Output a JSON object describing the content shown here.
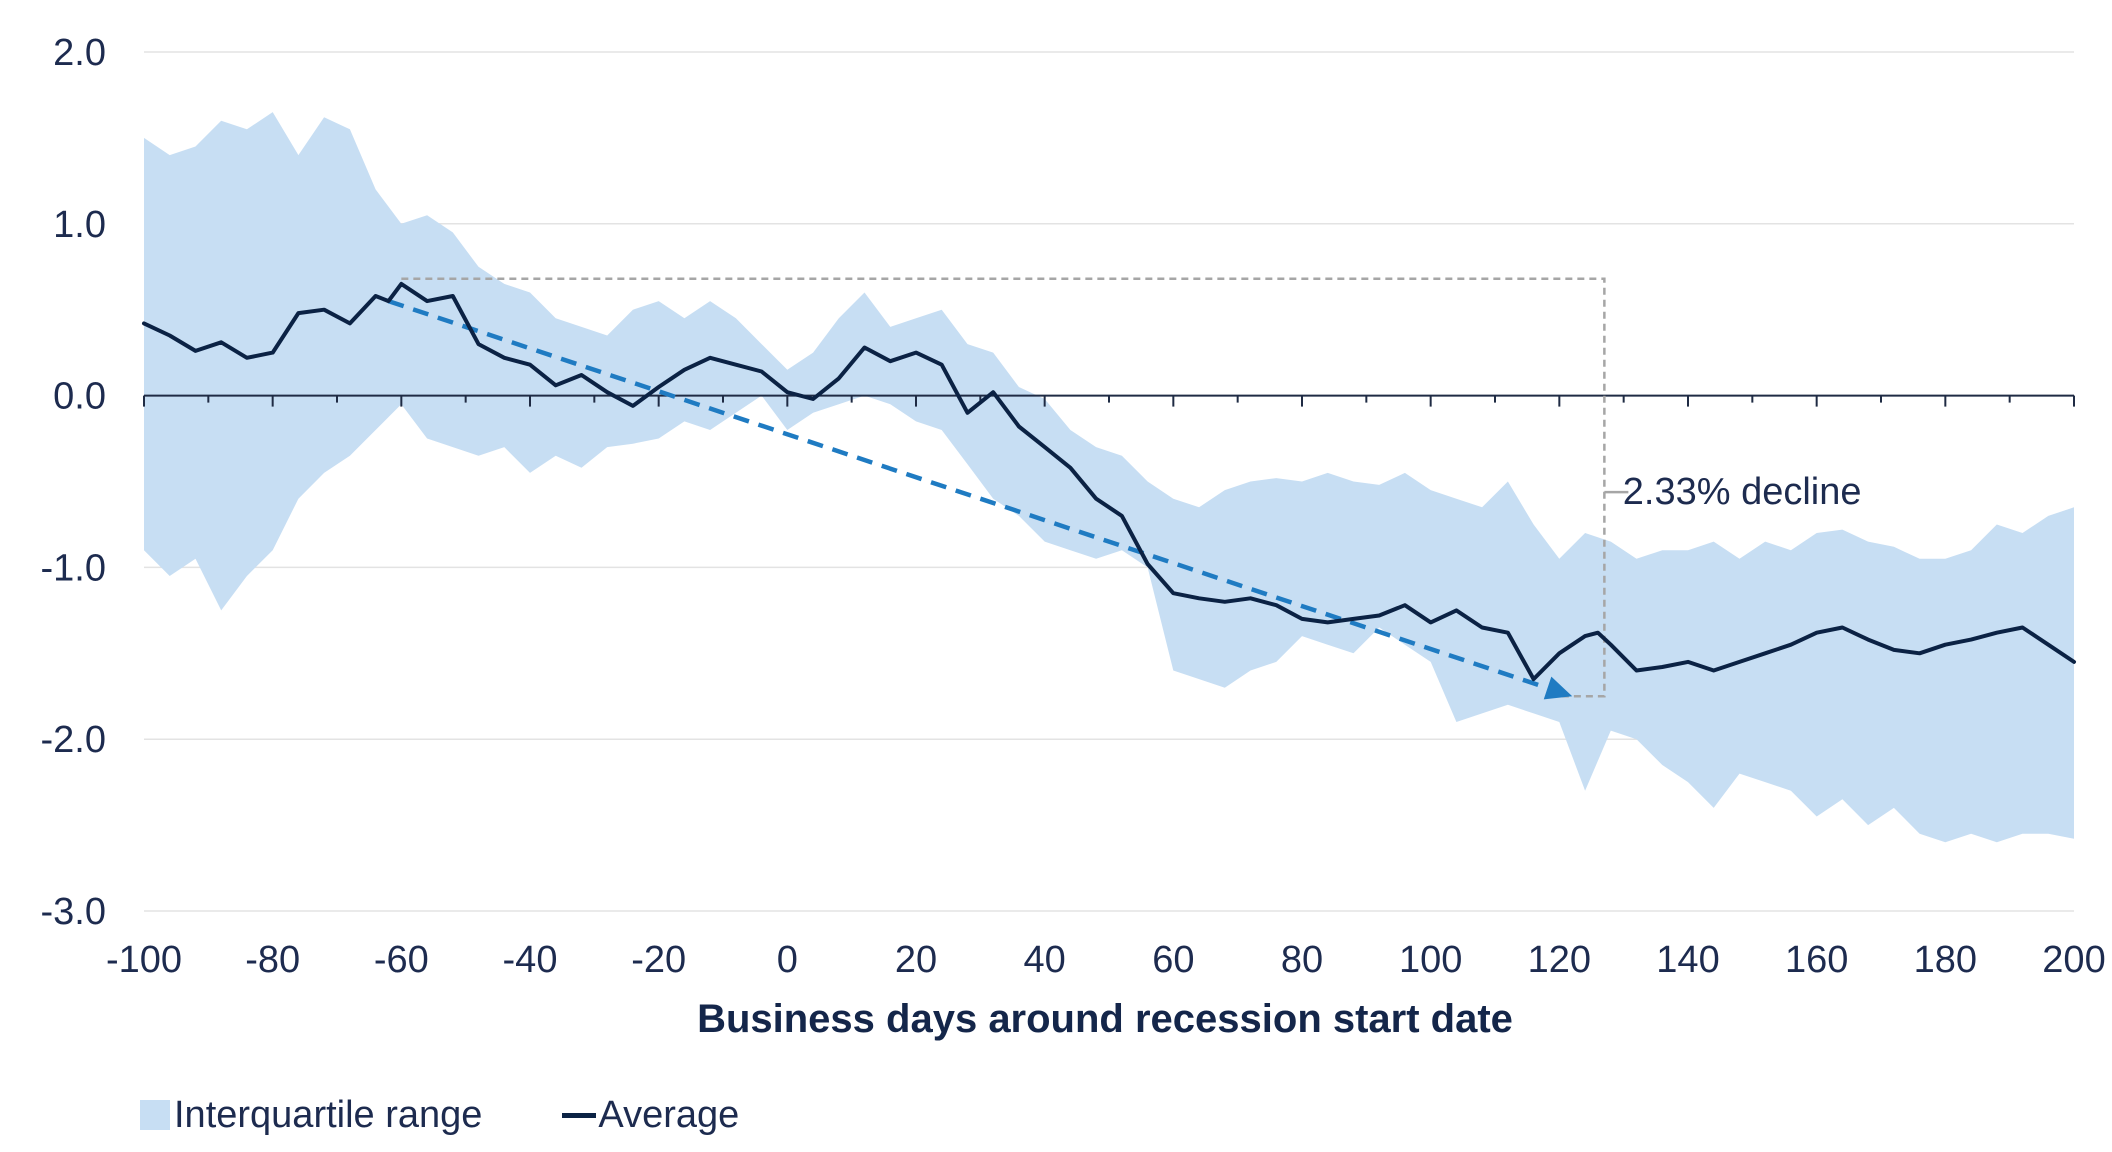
{
  "colors": {
    "band": "#c7def3",
    "average_line": "#0b2244",
    "trend_arrow": "#1f7bc2",
    "bracket": "#a6a6a6",
    "grid": "#e3e3e3",
    "axis": "#1f2b44",
    "text": "#1d2b4f"
  },
  "chart_data": {
    "type": "line",
    "title": "",
    "xlabel": "Business days around recession start date",
    "ylabel": "",
    "xlim": [
      -100,
      200
    ],
    "ylim": [
      -3.0,
      2.0
    ],
    "grid": true,
    "x_ticks": [
      -100,
      -80,
      -60,
      -40,
      -20,
      0,
      20,
      40,
      60,
      80,
      100,
      120,
      140,
      160,
      180,
      200
    ],
    "x_tick_labels": [
      "-100",
      "-80",
      "-60",
      "-40",
      "-20",
      "0",
      "20",
      "40",
      "60",
      "80",
      "100",
      "120",
      "140",
      "160",
      "180",
      "200"
    ],
    "y_ticks": [
      2.0,
      1.0,
      0.0,
      -1.0,
      -2.0,
      -3.0
    ],
    "y_tick_labels": [
      "2.0",
      "1.0",
      "0.0",
      "-1.0",
      "-2.0",
      "-3.0"
    ],
    "legend": {
      "position": "bottom-left",
      "entries": [
        {
          "label": "Interquartile range",
          "style": "band"
        },
        {
          "label": "Average",
          "style": "line"
        }
      ]
    },
    "series": [
      {
        "name": "Average",
        "style": "line",
        "x": [
          -100,
          -96,
          -92,
          -88,
          -84,
          -80,
          -76,
          -72,
          -68,
          -64,
          -62,
          -60,
          -56,
          -52,
          -48,
          -44,
          -40,
          -36,
          -32,
          -28,
          -24,
          -20,
          -16,
          -12,
          -8,
          -4,
          0,
          4,
          8,
          12,
          16,
          20,
          24,
          28,
          32,
          36,
          40,
          44,
          48,
          52,
          56,
          60,
          64,
          68,
          72,
          76,
          80,
          84,
          88,
          92,
          96,
          100,
          104,
          108,
          112,
          116,
          120,
          122,
          124,
          126,
          128,
          132,
          136,
          140,
          144,
          148,
          152,
          156,
          160,
          164,
          168,
          172,
          176,
          180,
          184,
          188,
          192,
          196,
          200
        ],
        "values": [
          0.42,
          0.35,
          0.26,
          0.31,
          0.22,
          0.25,
          0.48,
          0.5,
          0.42,
          0.58,
          0.55,
          0.65,
          0.55,
          0.58,
          0.3,
          0.22,
          0.18,
          0.06,
          0.12,
          0.02,
          -0.06,
          0.05,
          0.15,
          0.22,
          0.18,
          0.14,
          0.02,
          -0.02,
          0.1,
          0.28,
          0.2,
          0.25,
          0.18,
          -0.1,
          0.02,
          -0.18,
          -0.3,
          -0.42,
          -0.6,
          -0.7,
          -0.98,
          -1.15,
          -1.18,
          -1.2,
          -1.18,
          -1.22,
          -1.3,
          -1.32,
          -1.3,
          -1.28,
          -1.22,
          -1.32,
          -1.25,
          -1.35,
          -1.38,
          -1.65,
          -1.5,
          -1.45,
          -1.4,
          -1.38,
          -1.45,
          -1.6,
          -1.58,
          -1.55,
          -1.6,
          -1.55,
          -1.5,
          -1.45,
          -1.38,
          -1.35,
          -1.42,
          -1.48,
          -1.5,
          -1.45,
          -1.42,
          -1.38,
          -1.35,
          -1.45,
          -1.55
        ]
      },
      {
        "name": "Interquartile range",
        "style": "band",
        "x": [
          -100,
          -96,
          -92,
          -88,
          -84,
          -80,
          -76,
          -72,
          -68,
          -64,
          -60,
          -56,
          -52,
          -48,
          -44,
          -40,
          -36,
          -32,
          -28,
          -24,
          -20,
          -16,
          -12,
          -8,
          -4,
          0,
          4,
          8,
          12,
          16,
          20,
          24,
          28,
          32,
          36,
          40,
          44,
          48,
          52,
          56,
          60,
          64,
          68,
          72,
          76,
          80,
          84,
          88,
          92,
          96,
          100,
          104,
          108,
          112,
          116,
          120,
          124,
          128,
          132,
          136,
          140,
          144,
          148,
          152,
          156,
          160,
          164,
          168,
          172,
          176,
          180,
          184,
          188,
          192,
          196,
          200
        ],
        "upper": [
          1.5,
          1.4,
          1.45,
          1.6,
          1.55,
          1.65,
          1.4,
          1.62,
          1.55,
          1.2,
          1.0,
          1.05,
          0.95,
          0.75,
          0.65,
          0.6,
          0.45,
          0.4,
          0.35,
          0.5,
          0.55,
          0.45,
          0.55,
          0.45,
          0.3,
          0.15,
          0.25,
          0.45,
          0.6,
          0.4,
          0.45,
          0.5,
          0.3,
          0.25,
          0.05,
          -0.02,
          -0.2,
          -0.3,
          -0.35,
          -0.5,
          -0.6,
          -0.65,
          -0.55,
          -0.5,
          -0.48,
          -0.5,
          -0.45,
          -0.5,
          -0.52,
          -0.45,
          -0.55,
          -0.6,
          -0.65,
          -0.5,
          -0.75,
          -0.95,
          -0.8,
          -0.85,
          -0.95,
          -0.9,
          -0.9,
          -0.85,
          -0.95,
          -0.85,
          -0.9,
          -0.8,
          -0.78,
          -0.85,
          -0.88,
          -0.95,
          -0.95,
          -0.9,
          -0.75,
          -0.8,
          -0.7,
          -0.65
        ],
        "lower": [
          -0.9,
          -1.05,
          -0.95,
          -1.25,
          -1.05,
          -0.9,
          -0.6,
          -0.45,
          -0.35,
          -0.2,
          -0.05,
          -0.25,
          -0.3,
          -0.35,
          -0.3,
          -0.45,
          -0.35,
          -0.42,
          -0.3,
          -0.28,
          -0.25,
          -0.15,
          -0.2,
          -0.1,
          0.0,
          -0.2,
          -0.1,
          -0.05,
          0.0,
          -0.05,
          -0.15,
          -0.2,
          -0.4,
          -0.6,
          -0.7,
          -0.85,
          -0.9,
          -0.95,
          -0.9,
          -1.0,
          -1.6,
          -1.65,
          -1.7,
          -1.6,
          -1.55,
          -1.4,
          -1.45,
          -1.5,
          -1.35,
          -1.45,
          -1.55,
          -1.9,
          -1.85,
          -1.8,
          -1.85,
          -1.9,
          -2.3,
          -1.95,
          -2.0,
          -2.15,
          -2.25,
          -2.4,
          -2.2,
          -2.25,
          -2.3,
          -2.45,
          -2.35,
          -2.5,
          -2.4,
          -2.55,
          -2.6,
          -2.55,
          -2.6,
          -2.55,
          -2.55,
          -2.58
        ]
      }
    ],
    "annotations": [
      {
        "type": "trend-arrow",
        "style": "dashed",
        "from": [
          -62,
          0.55
        ],
        "to": [
          122,
          -1.75
        ]
      },
      {
        "type": "bracket",
        "style": "dashed",
        "top_y": 0.68,
        "bottom_y": -1.75,
        "x_start": -60,
        "x_bracket": 127,
        "x_bottom_start": 120
      },
      {
        "type": "label",
        "text": "2.33% decline",
        "x": 128,
        "y": -0.55
      }
    ]
  }
}
